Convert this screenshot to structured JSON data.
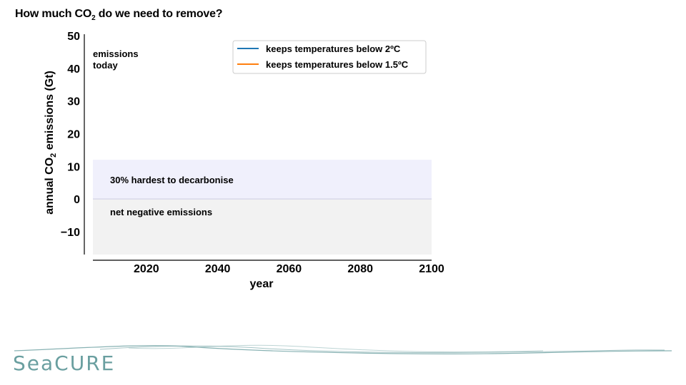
{
  "slide": {
    "title_prefix": "How much CO",
    "title_sub": "2",
    "title_suffix": " do we need to remove?"
  },
  "brand": {
    "text": "SeaCURE",
    "color": "#6a9fa0"
  },
  "colors": {
    "band_hard": "#f0f0fc",
    "band_negative": "#f2f2f2",
    "line_2C": "#1f77b4",
    "line_1_5C": "#ff7f0e"
  },
  "chart_data": {
    "type": "line",
    "xlabel": "year",
    "ylabel_prefix": "annual CO",
    "ylabel_sub": "2",
    "ylabel_suffix": " emissions (Gt)",
    "xlim": [
      2005,
      2100
    ],
    "ylim": [
      -17,
      50
    ],
    "xticks": [
      2020,
      2040,
      2060,
      2080,
      2100
    ],
    "yticks": [
      50,
      40,
      30,
      20,
      10,
      0,
      -10
    ],
    "ytick_labels": [
      "50",
      "40",
      "30",
      "20",
      "10",
      "0",
      "−10"
    ],
    "grid": false,
    "legend_position": "top-right",
    "series": [
      {
        "name": "keeps temperatures below 2ºC",
        "color": "#1f77b4",
        "x": [],
        "y": []
      },
      {
        "name": "keeps temperatures below 1.5ºC",
        "color": "#ff7f0e",
        "x": [],
        "y": []
      }
    ],
    "bands": [
      {
        "label": "30% hardest to decarbonise",
        "y0": 0,
        "y1": 12,
        "color": "#f0f0fc"
      },
      {
        "label": "net negative emissions",
        "y0": -17,
        "y1": 0,
        "color": "#f2f2f2"
      }
    ],
    "annotations": [
      {
        "text_lines": [
          "emissions",
          "today"
        ],
        "x": 2007,
        "y": 45
      }
    ]
  }
}
